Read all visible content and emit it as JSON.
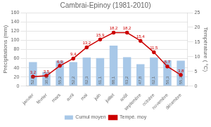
{
  "chart_data": {
    "type": "bar",
    "title": "Cambrai-Epinoy (1981-2010)",
    "categories": [
      "janvier",
      "février",
      "mars",
      "avril",
      "mai",
      "juin",
      "juillet",
      "août",
      "septembre",
      "octobre",
      "novembre",
      "décembre"
    ],
    "series": [
      {
        "name": "Cumul moyen",
        "type": "bar",
        "color": "#a8c8e8",
        "values": [
          52.5,
          30.9,
          55.2,
          52.2,
          62.3,
          61.1,
          88.1,
          63.2,
          47.8,
          62.1,
          56.3,
          55.3
        ],
        "value_labels": [
          "52,5",
          "30,9",
          "55,2",
          "52,2",
          "62,3",
          "61,1",
          "88,1",
          "63,2",
          "47,8",
          "62,1",
          "56,3",
          "55,3"
        ]
      },
      {
        "name": "Tempé. moy",
        "type": "line",
        "color": "#cc0000",
        "axis": "y2",
        "marker": "circle",
        "values": [
          3.2,
          3.5,
          6.9,
          9.4,
          13.2,
          15.9,
          18.2,
          18.2,
          15.4,
          11.5,
          6.7,
          3.8
        ],
        "value_labels": [
          "3,2",
          "3,5",
          "6,9",
          "9,4",
          "13,2",
          "15,9",
          "18,2",
          "18,2",
          "15,4",
          "11,5",
          "6,7",
          "3,8"
        ]
      }
    ],
    "ylabel": "Précipitations (mm)",
    "y2label": "Température ( °C)",
    "ylim": [
      0,
      160
    ],
    "yticks": [
      0,
      20,
      40,
      60,
      80,
      100,
      120,
      140,
      160
    ],
    "y2lim": [
      0,
      25
    ],
    "y2ticks": [
      0,
      5,
      10,
      15,
      20,
      25
    ],
    "grid": true,
    "legend": "bottom",
    "data_labels": true
  }
}
